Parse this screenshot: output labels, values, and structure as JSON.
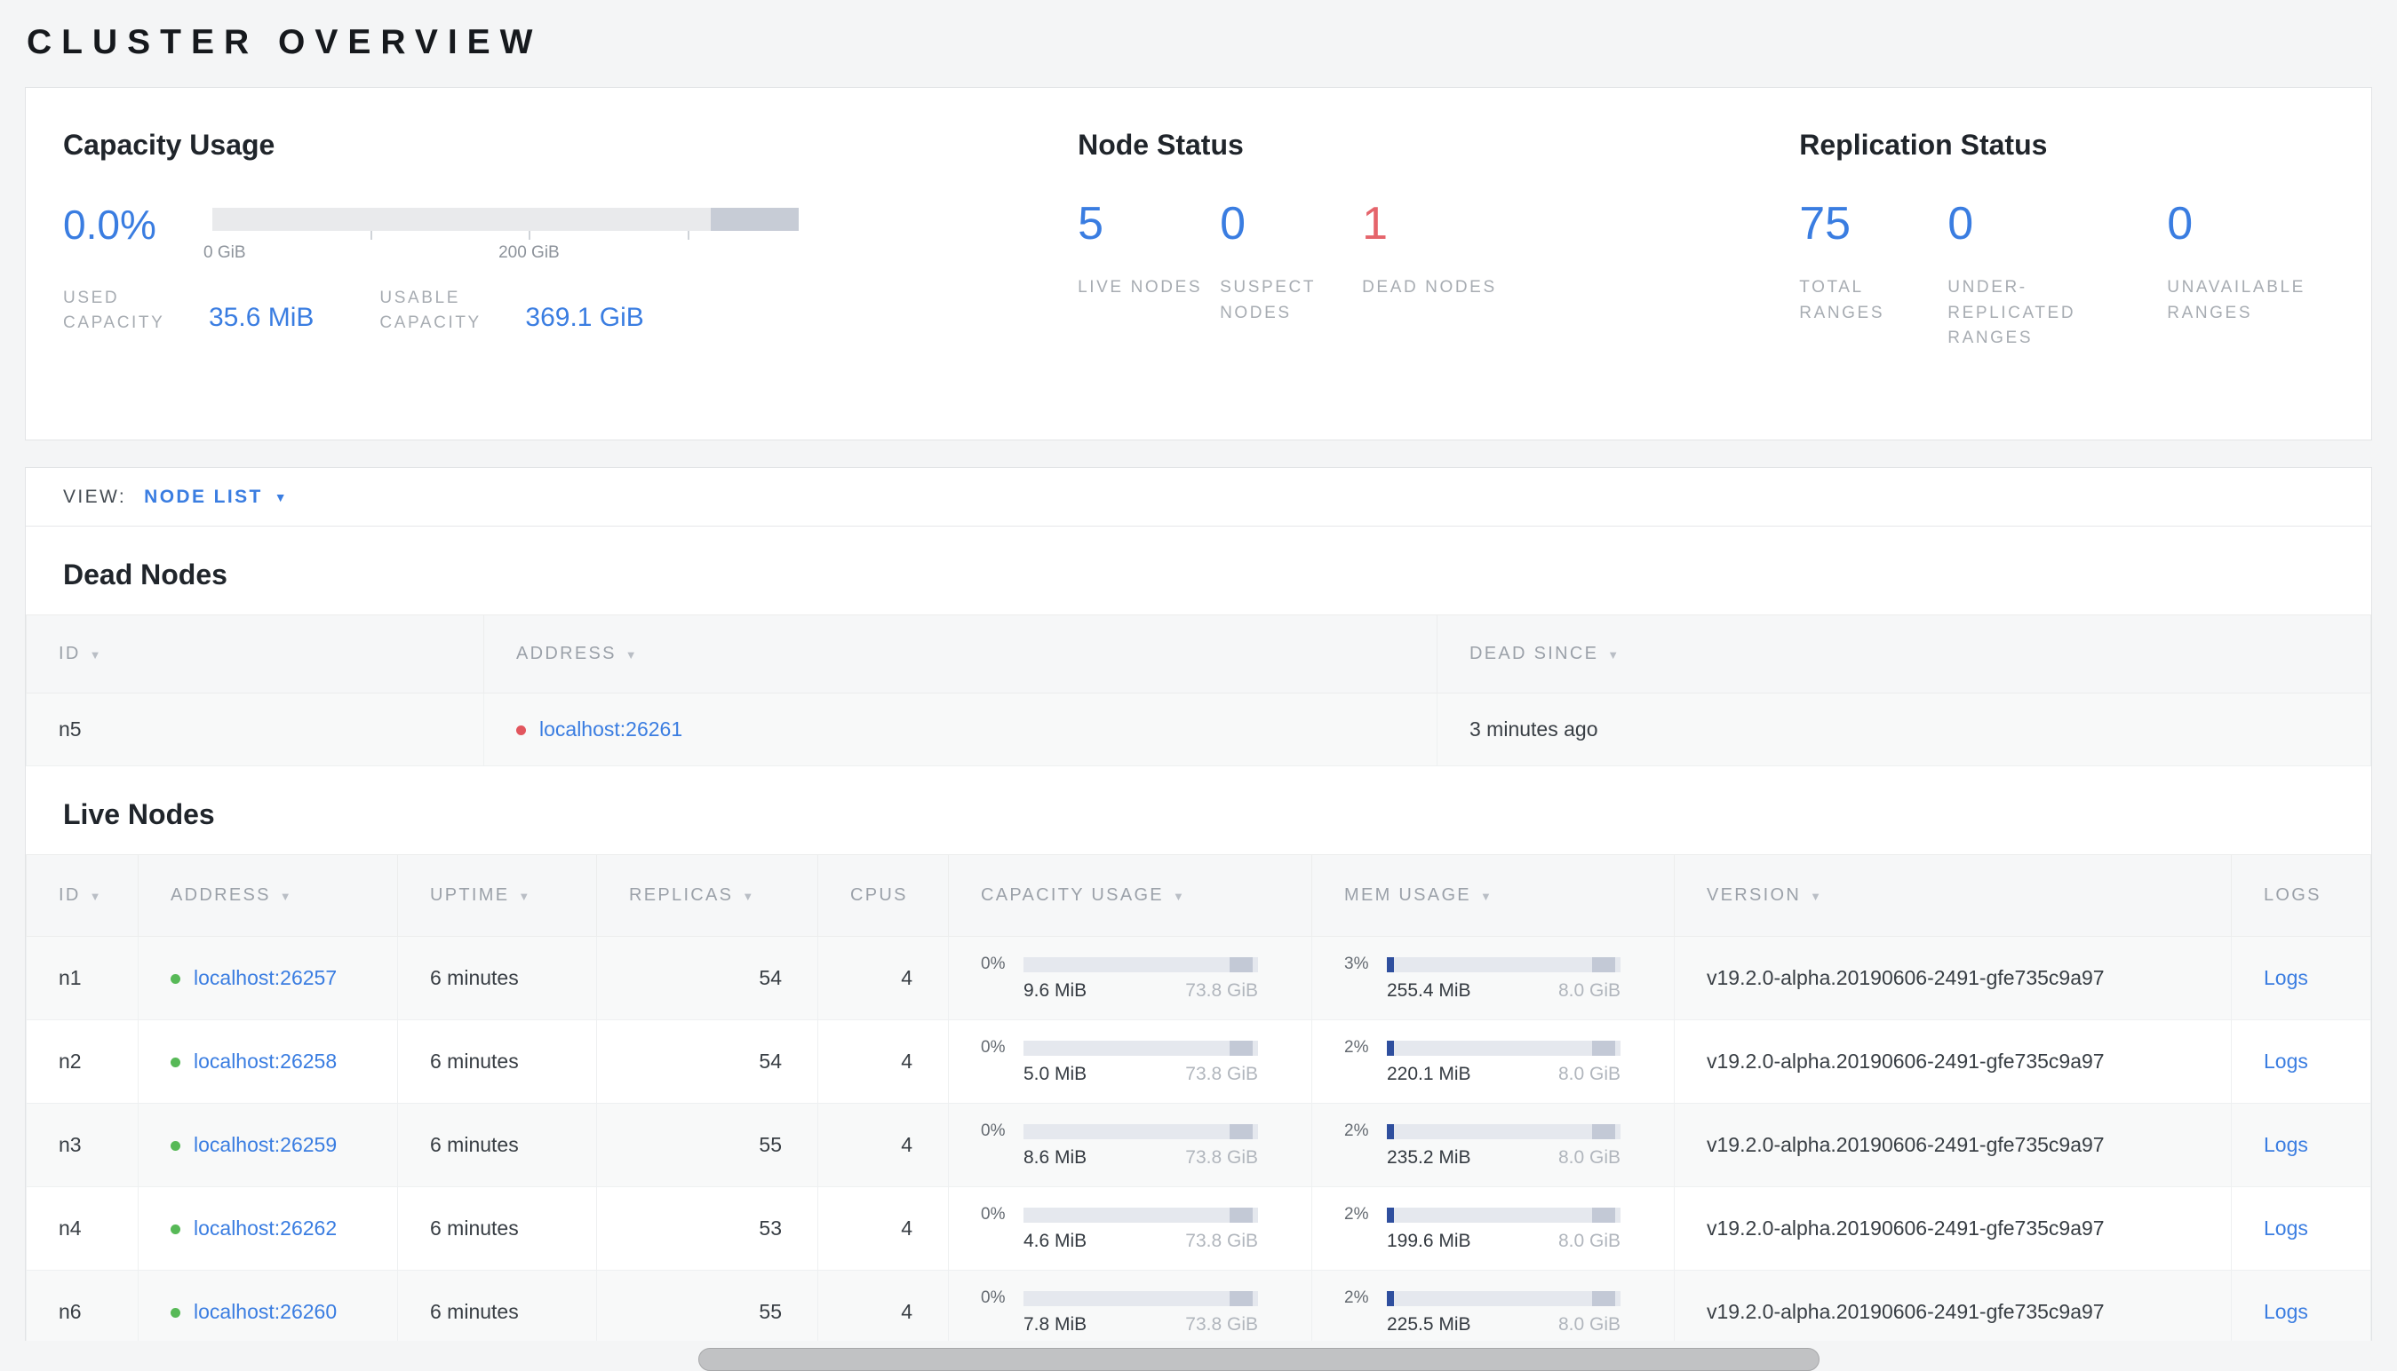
{
  "page": {
    "title": "CLUSTER OVERVIEW"
  },
  "colors": {
    "accent_blue": "#3a7de1",
    "danger_red": "#e5646b",
    "live_green": "#57b957",
    "dead_red": "#e2565e",
    "bar_background": "#e5e8ee",
    "bar_secondary": "#c7ccd6",
    "bar_fill_blue": "#2f4f9e"
  },
  "summary": {
    "capacity": {
      "title": "Capacity Usage",
      "percent": "0.0%",
      "tick_labels": [
        "0 GiB",
        "200 GiB"
      ],
      "used_label": "USED CAPACITY",
      "used_value": "35.6 MiB",
      "usable_label": "USABLE CAPACITY",
      "usable_value": "369.1 GiB"
    },
    "node_status": {
      "title": "Node Status",
      "items": [
        {
          "value": "5",
          "label": "LIVE NODES",
          "tone": "blue"
        },
        {
          "value": "0",
          "label": "SUSPECT NODES",
          "tone": "blue"
        },
        {
          "value": "1",
          "label": "DEAD NODES",
          "tone": "red"
        }
      ]
    },
    "replication": {
      "title": "Replication Status",
      "items": [
        {
          "value": "75",
          "label": "TOTAL RANGES",
          "tone": "blue"
        },
        {
          "value": "0",
          "label": "UNDER-REPLICATED RANGES",
          "tone": "blue"
        },
        {
          "value": "0",
          "label": "UNAVAILABLE RANGES",
          "tone": "blue"
        }
      ]
    }
  },
  "view_bar": {
    "label": "VIEW:",
    "selected": "NODE LIST"
  },
  "dead_nodes": {
    "title": "Dead Nodes",
    "columns": [
      {
        "key": "id",
        "label": "ID",
        "sortable": true
      },
      {
        "key": "address",
        "label": "ADDRESS",
        "sortable": true
      },
      {
        "key": "dead_since",
        "label": "DEAD SINCE",
        "sortable": true
      }
    ],
    "rows": [
      {
        "id": "n5",
        "status": "dead",
        "address": "localhost:26261",
        "dead_since": "3 minutes ago"
      }
    ]
  },
  "live_nodes": {
    "title": "Live Nodes",
    "columns": [
      {
        "key": "id",
        "label": "ID",
        "sortable": true
      },
      {
        "key": "address",
        "label": "ADDRESS",
        "sortable": true
      },
      {
        "key": "uptime",
        "label": "UPTIME",
        "sortable": true
      },
      {
        "key": "replicas",
        "label": "REPLICAS",
        "sortable": true
      },
      {
        "key": "cpus",
        "label": "CPUS",
        "sortable": false
      },
      {
        "key": "capacity",
        "label": "CAPACITY USAGE",
        "sortable": true
      },
      {
        "key": "mem",
        "label": "MEM USAGE",
        "sortable": true
      },
      {
        "key": "version",
        "label": "VERSION",
        "sortable": true
      },
      {
        "key": "logs",
        "label": "LOGS",
        "sortable": false
      }
    ],
    "rows": [
      {
        "id": "n1",
        "status": "live",
        "address": "localhost:26257",
        "uptime": "6 minutes",
        "replicas": "54",
        "cpus": "4",
        "capacity": {
          "pct": "0%",
          "fill": 0,
          "used": "9.6 MiB",
          "total": "73.8 GiB"
        },
        "mem": {
          "pct": "3%",
          "fill": 3,
          "used": "255.4 MiB",
          "total": "8.0 GiB"
        },
        "version": "v19.2.0-alpha.20190606-2491-gfe735c9a97",
        "logs": "Logs"
      },
      {
        "id": "n2",
        "status": "live",
        "address": "localhost:26258",
        "uptime": "6 minutes",
        "replicas": "54",
        "cpus": "4",
        "capacity": {
          "pct": "0%",
          "fill": 0,
          "used": "5.0 MiB",
          "total": "73.8 GiB"
        },
        "mem": {
          "pct": "2%",
          "fill": 2,
          "used": "220.1 MiB",
          "total": "8.0 GiB"
        },
        "version": "v19.2.0-alpha.20190606-2491-gfe735c9a97",
        "logs": "Logs"
      },
      {
        "id": "n3",
        "status": "live",
        "address": "localhost:26259",
        "uptime": "6 minutes",
        "replicas": "55",
        "cpus": "4",
        "capacity": {
          "pct": "0%",
          "fill": 0,
          "used": "8.6 MiB",
          "total": "73.8 GiB"
        },
        "mem": {
          "pct": "2%",
          "fill": 2,
          "used": "235.2 MiB",
          "total": "8.0 GiB"
        },
        "version": "v19.2.0-alpha.20190606-2491-gfe735c9a97",
        "logs": "Logs"
      },
      {
        "id": "n4",
        "status": "live",
        "address": "localhost:26262",
        "uptime": "6 minutes",
        "replicas": "53",
        "cpus": "4",
        "capacity": {
          "pct": "0%",
          "fill": 0,
          "used": "4.6 MiB",
          "total": "73.8 GiB"
        },
        "mem": {
          "pct": "2%",
          "fill": 2,
          "used": "199.6 MiB",
          "total": "8.0 GiB"
        },
        "version": "v19.2.0-alpha.20190606-2491-gfe735c9a97",
        "logs": "Logs"
      },
      {
        "id": "n6",
        "status": "live",
        "address": "localhost:26260",
        "uptime": "6 minutes",
        "replicas": "55",
        "cpus": "4",
        "capacity": {
          "pct": "0%",
          "fill": 0,
          "used": "7.8 MiB",
          "total": "73.8 GiB"
        },
        "mem": {
          "pct": "2%",
          "fill": 2,
          "used": "225.5 MiB",
          "total": "8.0 GiB"
        },
        "version": "v19.2.0-alpha.20190606-2491-gfe735c9a97",
        "logs": "Logs"
      }
    ]
  }
}
